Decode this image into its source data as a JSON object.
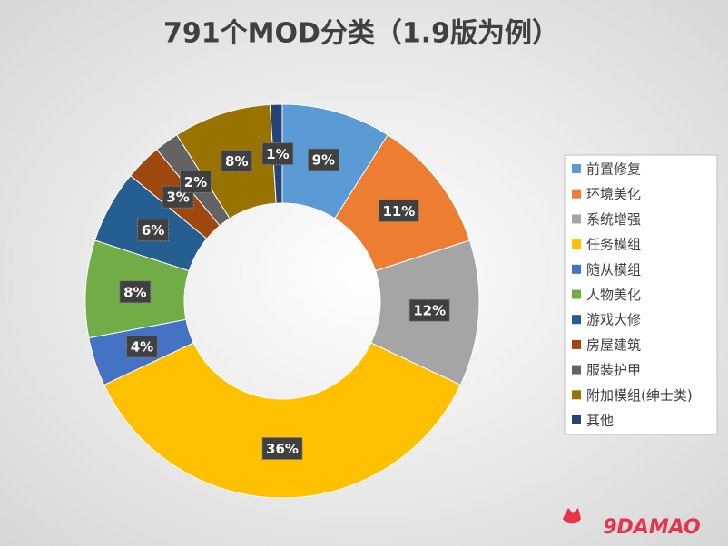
{
  "chart_data": {
    "type": "pie",
    "title": "791个MOD分类（1.9版为例）",
    "categories": [
      "前置修复",
      "环境美化",
      "系统增强",
      "任务模组",
      "随从模组",
      "人物美化",
      "游戏大修",
      "房屋建筑",
      "服装护甲",
      "附加模组(绅士类)",
      "其他"
    ],
    "values": [
      9,
      11,
      12,
      36,
      4,
      8,
      6,
      3,
      2,
      8,
      1
    ],
    "value_labels": [
      "9%",
      "11%",
      "12%",
      "36%",
      "4%",
      "8%",
      "6%",
      "3%",
      "2%",
      "8%",
      "1%"
    ],
    "colors": [
      "#5b9bd5",
      "#ed7d31",
      "#a5a5a5",
      "#ffc000",
      "#4472c4",
      "#70ad47",
      "#255e91",
      "#9e480e",
      "#636363",
      "#997300",
      "#264478"
    ],
    "donut": true,
    "legend": "right",
    "watermark": "9DAMAO"
  }
}
